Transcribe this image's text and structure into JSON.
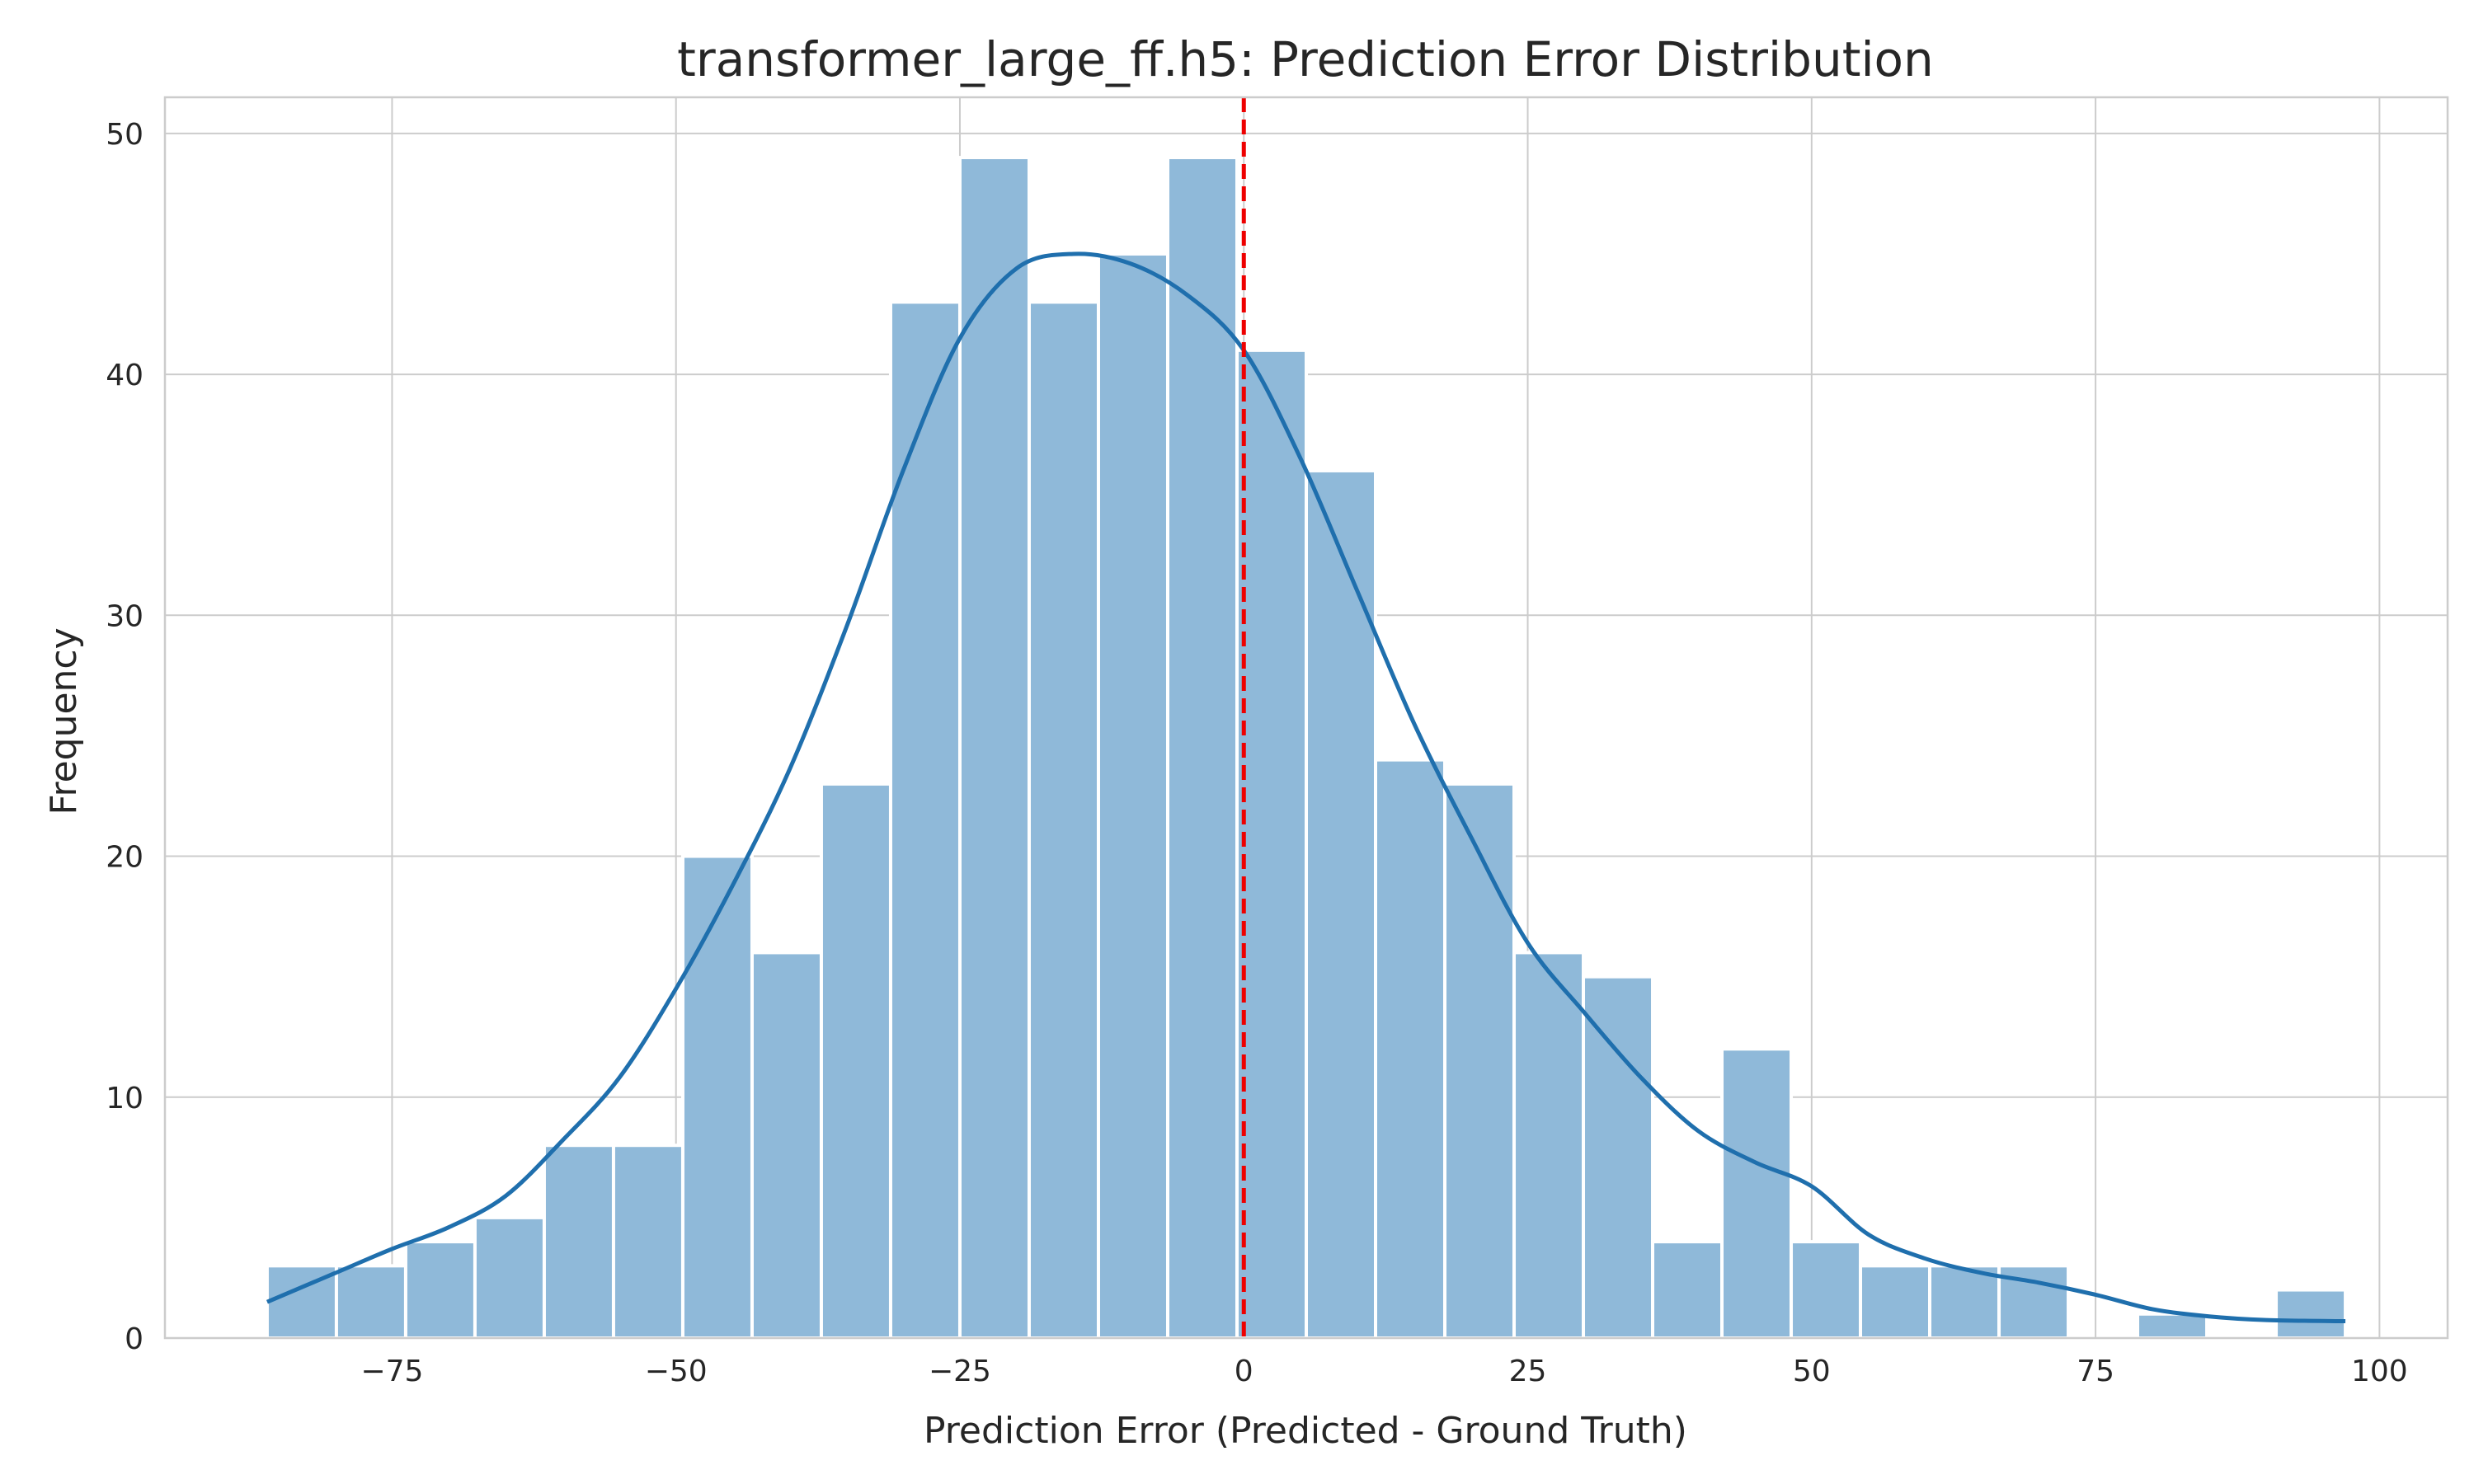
{
  "chart_data": {
    "type": "bar",
    "title": "transformer_large_ff.h5: Prediction Error Distribution",
    "xlabel": "Prediction Error (Predicted - Ground Truth)",
    "ylabel": "Frequency",
    "xlim": [
      -95,
      106
    ],
    "ylim": [
      0,
      51.5
    ],
    "xticks": [
      -75,
      -50,
      -25,
      0,
      25,
      50,
      75,
      100
    ],
    "xtick_labels": [
      "−75",
      "−50",
      "−25",
      "0",
      "25",
      "50",
      "75",
      "100"
    ],
    "yticks": [
      0,
      10,
      20,
      30,
      40,
      50
    ],
    "ytick_labels": [
      "0",
      "10",
      "20",
      "30",
      "40",
      "50"
    ],
    "grid": true,
    "bin_edges": [
      -86.0,
      -79.9,
      -73.8,
      -67.7,
      -61.6,
      -55.5,
      -49.4,
      -43.3,
      -37.2,
      -31.1,
      -25.0,
      -18.9,
      -12.8,
      -6.7,
      -0.6,
      5.5,
      11.6,
      17.7,
      23.8,
      29.9,
      36.0,
      42.1,
      48.2,
      54.3,
      60.4,
      66.5,
      72.6,
      78.7,
      84.8,
      90.9,
      97.0
    ],
    "counts": [
      3,
      3,
      4,
      5,
      8,
      8,
      20,
      16,
      23,
      43,
      49,
      43,
      45,
      49,
      41,
      36,
      24,
      23,
      16,
      15,
      4,
      12,
      4,
      3,
      3,
      3,
      0,
      1,
      0,
      2
    ],
    "kde": {
      "x": [
        -86,
        -80,
        -75,
        -70,
        -65,
        -60,
        -55,
        -50,
        -45,
        -40,
        -35,
        -30,
        -25,
        -20,
        -15,
        -10,
        -5,
        0,
        5,
        10,
        15,
        20,
        25,
        30,
        35,
        40,
        45,
        50,
        55,
        60,
        65,
        70,
        75,
        80,
        85,
        90,
        97
      ],
      "y": [
        1.5,
        2.7,
        3.7,
        4.6,
        5.9,
        8.2,
        10.8,
        14.5,
        18.8,
        23.6,
        29.5,
        36.0,
        41.5,
        44.4,
        45.0,
        44.6,
        43.3,
        41.0,
        36.5,
        31.0,
        25.5,
        20.8,
        16.4,
        13.5,
        10.8,
        8.6,
        7.3,
        6.3,
        4.3,
        3.3,
        2.7,
        2.3,
        1.8,
        1.2,
        0.9,
        0.75,
        0.7
      ]
    },
    "reference_line": {
      "x": 0,
      "color": "#ee0000",
      "style": "dashed"
    },
    "colors": {
      "bars": "#8fb9d9",
      "kde": "#1f6fad"
    }
  }
}
